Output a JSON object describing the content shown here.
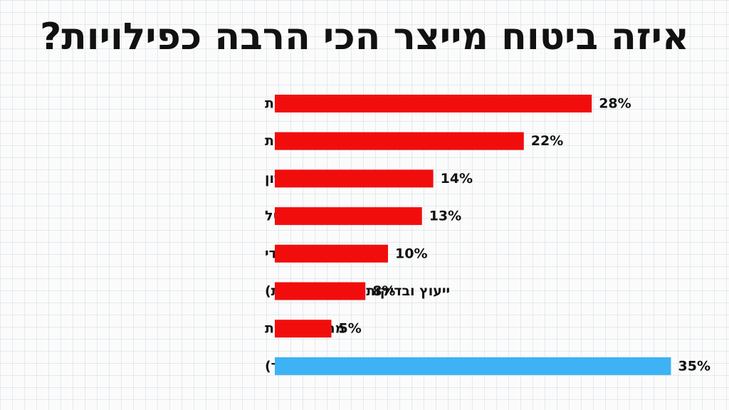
{
  "chart_data": {
    "type": "bar",
    "orientation": "horizontal",
    "title": "איזה ביטוח מייצר הכי הרבה כפילויות?",
    "xlabel": "",
    "ylabel": "",
    "grid": false,
    "categories": [
      "ביטוח חיים למקרה מוות",
      "תאונות אישיות",
      "ניתוחים מהשקל הראשון",
      "כיסוי לתרופות מחוץ לסל",
      "ביטוח סיעודי",
      "ייעוץ ובדיקות (ביטוח בריאות)",
      "מחלות קשות",
      "ביטוחי בריאות (ללא סיעוד)"
    ],
    "values": [
      28,
      22,
      14,
      13,
      10,
      8,
      5,
      35
    ],
    "value_labels": [
      "28%",
      "22%",
      "14%",
      "13%",
      "10%",
      "8%",
      "5%",
      "35%"
    ],
    "bar_colors": [
      "#f20d0d",
      "#f20d0d",
      "#f20d0d",
      "#f20d0d",
      "#f20d0d",
      "#f20d0d",
      "#f20d0d",
      "#3db2f5"
    ]
  }
}
